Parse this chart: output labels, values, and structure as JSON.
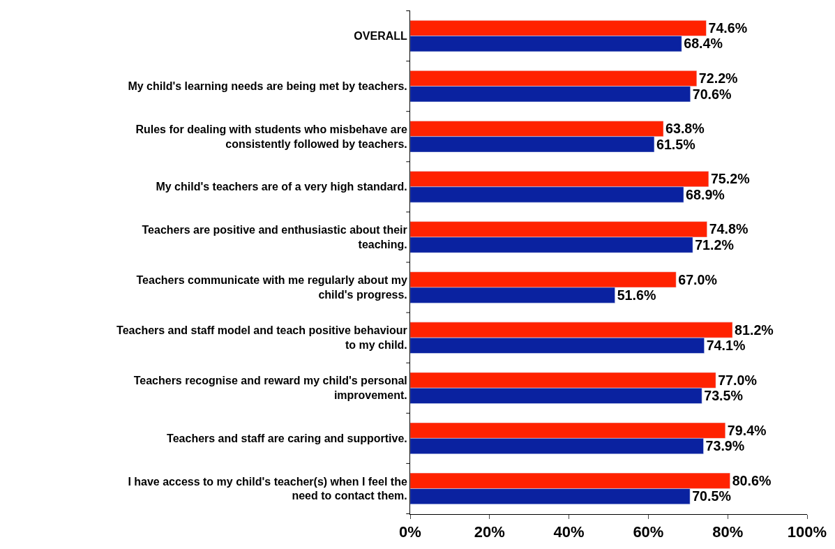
{
  "chart_data": {
    "type": "bar",
    "orientation": "horizontal",
    "categories": [
      "OVERALL",
      "My child's learning needs are being met by teachers.",
      "Rules for dealing with students who misbehave are\nconsistently followed by teachers.",
      "My child's teachers are of a very high standard.",
      "Teachers are positive and enthusiastic about their\nteaching.",
      "Teachers communicate with me regularly about my\nchild's progress.",
      "Teachers and staff model and teach positive behaviour\nto my child.",
      "Teachers recognise and reward my child's personal\nimprovement.",
      "Teachers and staff are caring and supportive.",
      "I have access to my child's teacher(s) when I feel the\nneed to contact them."
    ],
    "series": [
      {
        "color": "#ff2200",
        "values": [
          74.6,
          72.2,
          63.8,
          75.2,
          74.8,
          67.0,
          81.2,
          77.0,
          79.4,
          80.6
        ],
        "value_labels": [
          "74.6%",
          "72.2%",
          "63.8%",
          "75.2%",
          "74.8%",
          "67.0%",
          "81.2%",
          "77.0%",
          "79.4%",
          "80.6%"
        ]
      },
      {
        "color": "#0a22a0",
        "values": [
          68.4,
          70.6,
          61.5,
          68.9,
          71.2,
          51.6,
          74.1,
          73.5,
          73.9,
          70.5
        ],
        "value_labels": [
          "68.4%",
          "70.6%",
          "61.5%",
          "68.9%",
          "71.2%",
          "51.6%",
          "74.1%",
          "73.5%",
          "73.9%",
          "70.5%"
        ]
      }
    ],
    "xlim": [
      0,
      100
    ],
    "xticks": [
      {
        "value": 0,
        "label": "0%"
      },
      {
        "value": 20,
        "label": "20%"
      },
      {
        "value": 40,
        "label": "40%"
      },
      {
        "value": 60,
        "label": "60%"
      },
      {
        "value": 80,
        "label": "80%"
      },
      {
        "value": 100,
        "label": "100%"
      }
    ],
    "legend": false
  }
}
